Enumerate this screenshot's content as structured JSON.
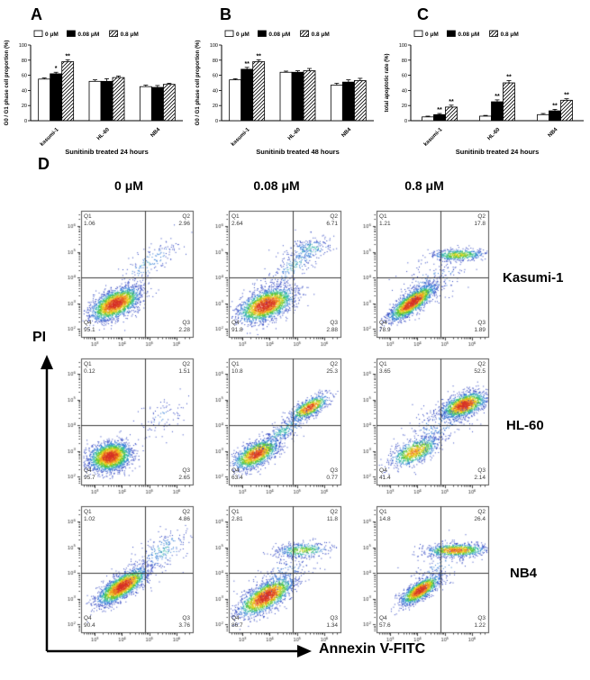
{
  "figure": {
    "panel_labels": [
      "A",
      "B",
      "C",
      "D"
    ]
  },
  "chart_data": [
    {
      "id": "A",
      "type": "bar",
      "title": "",
      "xlabel": "Sunitinib treated 24 hours",
      "ylabel": "G0 / G1 phase cell proportion (%)",
      "ylim": [
        0,
        100
      ],
      "yticks": [
        0,
        20,
        40,
        60,
        80,
        100
      ],
      "categories": [
        "kasumi-1",
        "HL-60",
        "NB4"
      ],
      "series": [
        {
          "name": "0 μM",
          "values": [
            55,
            52,
            45
          ],
          "errors": [
            1.5,
            2,
            2
          ]
        },
        {
          "name": "0.08 μM",
          "values": [
            62,
            52,
            44
          ],
          "errors": [
            2,
            3.5,
            2.5
          ]
        },
        {
          "name": "0.8 μM",
          "values": [
            78,
            57,
            48
          ],
          "errors": [
            2.5,
            2,
            1.5
          ]
        }
      ],
      "significance": [
        [
          "",
          "*",
          "**"
        ],
        [
          "",
          "",
          ""
        ],
        [
          "",
          "",
          ""
        ]
      ],
      "legend_position": "top",
      "grid": false
    },
    {
      "id": "B",
      "type": "bar",
      "title": "",
      "xlabel": "Sunitinib treated 48 hours",
      "ylabel": "G0 / G1 phase cell proportion (%)",
      "ylim": [
        0,
        100
      ],
      "yticks": [
        0,
        20,
        40,
        60,
        80,
        100
      ],
      "categories": [
        "kasumi-1",
        "HL-60",
        "NB4"
      ],
      "series": [
        {
          "name": "0 μM",
          "values": [
            54,
            64,
            47
          ],
          "errors": [
            1.5,
            1.5,
            2.5
          ]
        },
        {
          "name": "0.08 μM",
          "values": [
            68,
            64,
            51
          ],
          "errors": [
            2.5,
            2,
            3
          ]
        },
        {
          "name": "0.8 μM",
          "values": [
            78,
            66,
            53
          ],
          "errors": [
            2.5,
            3,
            3
          ]
        }
      ],
      "significance": [
        [
          "",
          "**",
          "**"
        ],
        [
          "",
          "",
          ""
        ],
        [
          "",
          "",
          ""
        ]
      ],
      "legend_position": "top",
      "grid": false
    },
    {
      "id": "C",
      "type": "bar",
      "title": "",
      "xlabel": "Sunitinib treated 24 hours",
      "ylabel": "total apoptotic rate (%)",
      "ylim": [
        0,
        100
      ],
      "yticks": [
        0,
        20,
        40,
        60,
        80,
        100
      ],
      "categories": [
        "kasumi-1",
        "HL-60",
        "NB4"
      ],
      "series": [
        {
          "name": "0 μM",
          "values": [
            5,
            6,
            8
          ],
          "errors": [
            1,
            1,
            1.5
          ]
        },
        {
          "name": "0.08 μM",
          "values": [
            8,
            25,
            13
          ],
          "errors": [
            1.5,
            2.5,
            2
          ]
        },
        {
          "name": "0.8 μM",
          "values": [
            18,
            50,
            27
          ],
          "errors": [
            2.5,
            3,
            2
          ]
        }
      ],
      "significance": [
        [
          "",
          "**",
          "**"
        ],
        [
          "",
          "**",
          "**"
        ],
        [
          "",
          "**",
          "**"
        ]
      ],
      "legend_position": "top",
      "grid": false
    }
  ],
  "flow_panel": {
    "label": "D",
    "column_headers": [
      "0 μM",
      "0.08 μM",
      "0.8 μM"
    ],
    "row_labels": [
      "Kasumi-1",
      "HL-60",
      "NB4"
    ],
    "y_axis_label": "PI",
    "x_axis_label": "Annexin V-FITC",
    "quadrant_names": [
      "Q1",
      "Q2",
      "Q3",
      "Q4"
    ],
    "x_tick_exponents": [
      3,
      4,
      5,
      6
    ],
    "y_tick_exponents": [
      2,
      3,
      4,
      5,
      6
    ],
    "axis_log_range": {
      "x": [
        2.5,
        6.6
      ],
      "y": [
        1.7,
        6.6
      ]
    },
    "gates": {
      "x_log": 4.85,
      "y_log": 4.0
    },
    "plots": [
      {
        "row": "Kasumi-1",
        "col": "0 μM",
        "quadrants": {
          "Q1": "1.06",
          "Q2": "2.96",
          "Q3": "2.28",
          "Q4": "95.1"
        },
        "clusters": [
          [
            3.75,
            3.0,
            0.45,
            0.32,
            0.55,
            2200,
            1.0
          ],
          [
            5.0,
            4.6,
            0.55,
            0.45,
            0.8,
            170,
            0.25
          ]
        ]
      },
      {
        "row": "Kasumi-1",
        "col": "0.08 μM",
        "quadrants": {
          "Q1": "2.64",
          "Q2": "6.71",
          "Q3": "2.88",
          "Q4": "91.8"
        },
        "clusters": [
          [
            3.85,
            2.95,
            0.5,
            0.33,
            0.5,
            2200,
            1.0
          ],
          [
            4.9,
            4.5,
            0.55,
            0.5,
            0.8,
            250,
            0.25
          ],
          [
            5.5,
            5.15,
            0.45,
            0.2,
            0.3,
            170,
            0.3
          ]
        ]
      },
      {
        "row": "Kasumi-1",
        "col": "0.8 μM",
        "quadrants": {
          "Q1": "1.21",
          "Q2": "17.8",
          "Q3": "1.89",
          "Q4": "78.9"
        },
        "clusters": [
          [
            3.8,
            3.05,
            0.42,
            0.35,
            0.8,
            1900,
            1.0
          ],
          [
            5.5,
            4.9,
            0.5,
            0.12,
            0.1,
            520,
            0.55
          ],
          [
            4.6,
            3.9,
            0.7,
            0.5,
            0.5,
            150,
            0.2
          ]
        ]
      },
      {
        "row": "HL-60",
        "col": "0 μM",
        "quadrants": {
          "Q1": "0.12",
          "Q2": "1.51",
          "Q3": "2.65",
          "Q4": "95.7"
        },
        "clusters": [
          [
            3.55,
            2.8,
            0.38,
            0.28,
            0.2,
            2400,
            1.0
          ],
          [
            5.4,
            4.3,
            0.5,
            0.45,
            0.4,
            90,
            0.15
          ]
        ]
      },
      {
        "row": "HL-60",
        "col": "0.08 μM",
        "quadrants": {
          "Q1": "10.8",
          "Q2": "25.3",
          "Q3": "0.77",
          "Q4": "63.4"
        },
        "clusters": [
          [
            3.5,
            2.9,
            0.42,
            0.3,
            0.6,
            1500,
            0.9
          ],
          [
            5.45,
            4.7,
            0.35,
            0.25,
            0.7,
            800,
            0.85
          ],
          [
            4.5,
            3.8,
            0.5,
            0.4,
            0.85,
            300,
            0.3
          ]
        ]
      },
      {
        "row": "HL-60",
        "col": "0.8 μM",
        "quadrants": {
          "Q1": "3.65",
          "Q2": "52.5",
          "Q3": "2.14",
          "Q4": "41.4"
        },
        "clusters": [
          [
            3.9,
            3.0,
            0.45,
            0.3,
            0.6,
            900,
            0.7
          ],
          [
            5.7,
            4.8,
            0.4,
            0.25,
            0.5,
            1600,
            1.0
          ],
          [
            4.8,
            4.0,
            0.7,
            0.5,
            0.6,
            250,
            0.2
          ]
        ]
      },
      {
        "row": "NB4",
        "col": "0 μM",
        "quadrants": {
          "Q1": "1.02",
          "Q2": "4.86",
          "Q3": "3.76",
          "Q4": "90.4"
        },
        "clusters": [
          [
            4.0,
            3.5,
            0.45,
            0.35,
            0.75,
            2200,
            1.0
          ],
          [
            5.5,
            4.9,
            0.5,
            0.45,
            0.5,
            240,
            0.25
          ]
        ]
      },
      {
        "row": "NB4",
        "col": "0.08 μM",
        "quadrants": {
          "Q1": "2.81",
          "Q2": "11.8",
          "Q3": "1.34",
          "Q4": "86.7"
        },
        "clusters": [
          [
            3.85,
            3.1,
            0.5,
            0.38,
            0.7,
            2000,
            1.0
          ],
          [
            5.2,
            4.9,
            0.5,
            0.15,
            0.2,
            430,
            0.5
          ],
          [
            4.5,
            4.0,
            0.6,
            0.4,
            0.6,
            150,
            0.2
          ]
        ]
      },
      {
        "row": "NB4",
        "col": "0.8 μM",
        "quadrants": {
          "Q1": "14.8",
          "Q2": "26.4",
          "Q3": "1.22",
          "Q4": "57.6"
        },
        "clusters": [
          [
            4.1,
            3.35,
            0.35,
            0.28,
            0.75,
            1400,
            1.0
          ],
          [
            5.4,
            4.9,
            0.55,
            0.13,
            0.1,
            900,
            0.8
          ],
          [
            4.8,
            4.2,
            0.6,
            0.5,
            0.5,
            120,
            0.2
          ]
        ]
      }
    ]
  },
  "colors": {
    "bar_open": "#ffffff",
    "bar_filled": "#000000",
    "axis": "#000000",
    "density_scale": [
      "#2f45c2",
      "#2e7ad6",
      "#2db9a0",
      "#59c42e",
      "#ecd71f",
      "#f08c1e",
      "#d63226"
    ]
  }
}
